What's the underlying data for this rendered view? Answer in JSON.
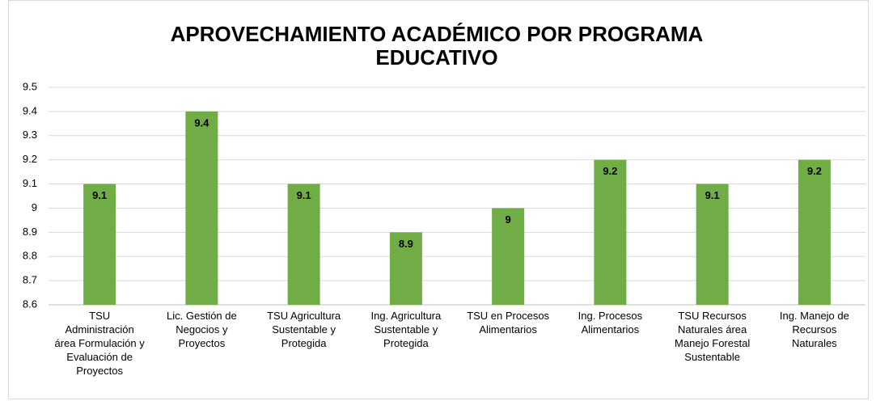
{
  "chart_data": {
    "type": "bar",
    "title": "APROVECHAMIENTO ACADÉMICO POR PROGRAMA EDUCATIVO",
    "categories": [
      "TSU Administración área Formulación y Evaluación de Proyectos",
      "Lic. Gestión de Negocios y Proyectos",
      "TSU Agricultura Sustentable y Protegida",
      "Ing. Agricultura Sustentable y Protegida",
      "TSU en Procesos Alimentarios",
      "Ing. Procesos Alimentarios",
      "TSU Recursos Naturales área Manejo Forestal Sustentable",
      "Ing. Manejo de Recursos Naturales"
    ],
    "values": [
      9.1,
      9.4,
      9.1,
      8.9,
      9,
      9.2,
      9.1,
      9.2
    ],
    "color": "#70ad47",
    "ylim": [
      8.6,
      9.5
    ],
    "yticks": [
      8.6,
      8.7,
      8.8,
      8.9,
      9,
      9.1,
      9.2,
      9.3,
      9.4,
      9.5
    ],
    "grid": true
  }
}
